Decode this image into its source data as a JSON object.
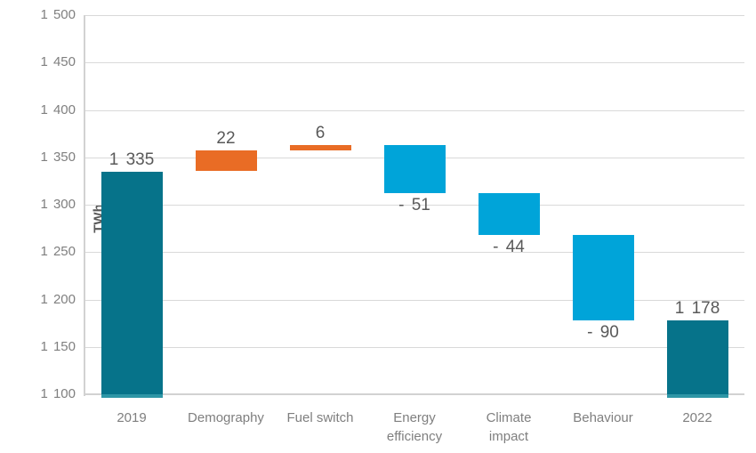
{
  "chart_data": {
    "type": "bar",
    "subtype": "waterfall",
    "ylabel": "TWh",
    "ylim": [
      1100,
      1500
    ],
    "ytick_step": 50,
    "yticks": [
      1500,
      1450,
      1400,
      1350,
      1300,
      1250,
      1200,
      1150,
      1100
    ],
    "ytick_labels": [
      "1 500",
      "1 450",
      "1 400",
      "1 350",
      "1 300",
      "1 250",
      "1 200",
      "1 150",
      "1 100"
    ],
    "categories": [
      "2019",
      "Demography",
      "Fuel switch",
      "Energy efficiency",
      "Climate impact",
      "Behaviour",
      "2022"
    ],
    "xtick_labels": [
      "2019",
      "Demography",
      "Fuel switch",
      "Energy\nefficiency",
      "Climate\nimpact",
      "Behaviour",
      "2022"
    ],
    "bars": [
      {
        "category": "2019",
        "kind": "total",
        "value": 1335,
        "label": "1 335"
      },
      {
        "category": "Demography",
        "kind": "increase",
        "value": 22,
        "label": "22"
      },
      {
        "category": "Fuel switch",
        "kind": "increase",
        "value": 6,
        "label": "6"
      },
      {
        "category": "Energy efficiency",
        "kind": "decrease",
        "value": -51,
        "label": "- 51"
      },
      {
        "category": "Climate impact",
        "kind": "decrease",
        "value": -44,
        "label": "- 44"
      },
      {
        "category": "Behaviour",
        "kind": "decrease",
        "value": -90,
        "label": "- 90"
      },
      {
        "category": "2022",
        "kind": "total",
        "value": 1178,
        "label": "1 178"
      }
    ],
    "grid": true,
    "legend": false,
    "colors": {
      "total": "#06738a",
      "total_base_strip": "#2e96a6",
      "increase": "#e96c25",
      "decrease": "#00a4d9",
      "gridline": "#d9d9d9",
      "axis_line": "#d2d2d2",
      "tick_text": "#7f7f7f",
      "value_label_text": "#595959",
      "axis_title_text": "#595959"
    }
  }
}
